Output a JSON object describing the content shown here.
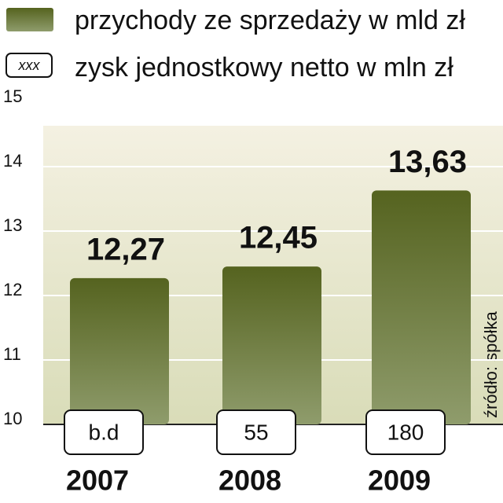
{
  "chart_data": {
    "type": "bar",
    "categories": [
      "2007",
      "2008",
      "2009"
    ],
    "series": [
      {
        "name": "przychody ze sprzedaży w mld zł",
        "color": "#63722f",
        "values": [
          12.27,
          12.45,
          13.63
        ],
        "value_labels": [
          "12,27",
          "12,45",
          "13,63"
        ]
      }
    ],
    "profit": {
      "name": "zysk jednostkowy netto w mln zł",
      "legend_sample": "xxx",
      "values": [
        null,
        55,
        180
      ],
      "value_labels": [
        "b.d",
        "55",
        "180"
      ]
    },
    "ylim": [
      10,
      15
    ],
    "yticks": [
      10,
      11,
      12,
      13,
      14,
      15
    ],
    "grid": true,
    "source": "źródło: spółka"
  }
}
